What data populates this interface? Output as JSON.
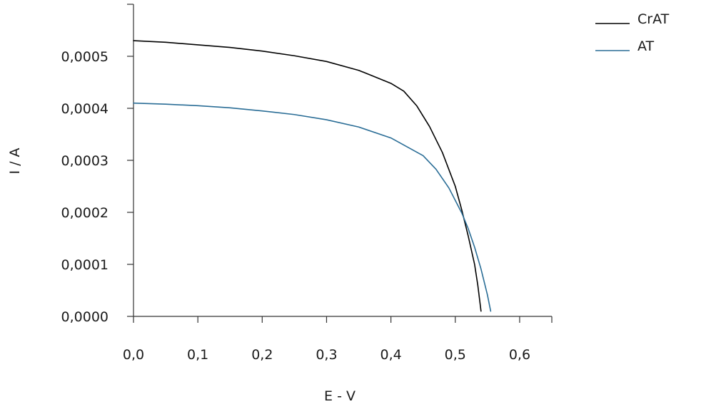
{
  "chart_data": {
    "type": "line",
    "xlabel": "E - V",
    "ylabel": "I / A",
    "xlim": [
      0,
      0.65
    ],
    "ylim": [
      0,
      0.0006
    ],
    "xticks": [
      {
        "value": 0.0,
        "label": "0,0"
      },
      {
        "value": 0.1,
        "label": "0,1"
      },
      {
        "value": 0.2,
        "label": "0,2"
      },
      {
        "value": 0.3,
        "label": "0,3"
      },
      {
        "value": 0.4,
        "label": "0,4"
      },
      {
        "value": 0.5,
        "label": "0,5"
      },
      {
        "value": 0.6,
        "label": "0,6"
      }
    ],
    "yticks": [
      {
        "value": 0.0,
        "label": "0,0000"
      },
      {
        "value": 0.0001,
        "label": "0,0001"
      },
      {
        "value": 0.0002,
        "label": "0,0002"
      },
      {
        "value": 0.0003,
        "label": "0,0003"
      },
      {
        "value": 0.0004,
        "label": "0,0004"
      },
      {
        "value": 0.0005,
        "label": "0,0005"
      }
    ],
    "grid": false,
    "legend_position": "top-right",
    "series": [
      {
        "name": "CrAT",
        "color": "#000000",
        "x": [
          0.0,
          0.05,
          0.1,
          0.15,
          0.2,
          0.25,
          0.3,
          0.35,
          0.4,
          0.42,
          0.44,
          0.46,
          0.48,
          0.5,
          0.51,
          0.52,
          0.53,
          0.535,
          0.54
        ],
        "y": [
          0.00053,
          0.000527,
          0.000522,
          0.000517,
          0.00051,
          0.000501,
          0.00049,
          0.000473,
          0.000448,
          0.000433,
          0.000405,
          0.000365,
          0.000315,
          0.00025,
          0.000205,
          0.000155,
          0.0001,
          6e-05,
          1e-05
        ]
      },
      {
        "name": "AT",
        "color": "#2a6d96",
        "x": [
          0.0,
          0.05,
          0.1,
          0.15,
          0.2,
          0.25,
          0.3,
          0.35,
          0.4,
          0.45,
          0.47,
          0.49,
          0.51,
          0.52,
          0.53,
          0.54,
          0.55,
          0.555
        ],
        "y": [
          0.00041,
          0.000408,
          0.000405,
          0.000401,
          0.000395,
          0.000388,
          0.000378,
          0.000364,
          0.000343,
          0.000309,
          0.000283,
          0.000247,
          0.000199,
          0.000169,
          0.000133,
          9.1e-05,
          4.1e-05,
          1e-05
        ]
      }
    ]
  }
}
